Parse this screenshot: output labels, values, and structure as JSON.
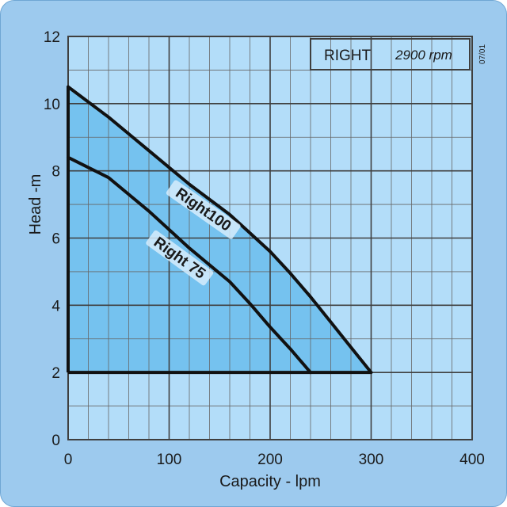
{
  "chart_data": {
    "type": "area",
    "title": "",
    "xlabel": "Capacity - lpm",
    "ylabel": "Head -m",
    "xlim": [
      0,
      400
    ],
    "ylim": [
      0,
      12
    ],
    "x_ticks": [
      0,
      100,
      200,
      300,
      400
    ],
    "y_ticks": [
      0,
      2,
      4,
      6,
      8,
      10,
      12
    ],
    "x_minor_step": 20,
    "y_minor_step": 1,
    "grid": true,
    "legend": {
      "model": "RIGHT",
      "speed": "2900 rpm",
      "placement": "top-right"
    },
    "date_code": "07/01",
    "series": [
      {
        "name": "Right100",
        "x": [
          0,
          20,
          40,
          60,
          80,
          100,
          120,
          140,
          160,
          180,
          200,
          220,
          240,
          260,
          280,
          300
        ],
        "y": [
          10.5,
          10.05,
          9.6,
          9.1,
          8.6,
          8.1,
          7.6,
          7.15,
          6.7,
          6.15,
          5.6,
          4.95,
          4.25,
          3.5,
          2.75,
          2.0
        ]
      },
      {
        "name": "Right 75",
        "x": [
          0,
          20,
          40,
          60,
          80,
          100,
          120,
          140,
          160,
          180,
          200,
          220,
          240
        ],
        "y": [
          8.4,
          8.1,
          7.8,
          7.3,
          6.8,
          6.25,
          5.7,
          5.2,
          4.7,
          4.05,
          3.35,
          2.7,
          2.0
        ]
      }
    ],
    "fill_baseline": 2,
    "colors": {
      "background": "#9dcaee",
      "plot": "#b3ddf9",
      "fill": "#75c2ef",
      "grid_major": "#3f3f3f",
      "grid_minor": "#666666",
      "curve": "#111111",
      "legend_box": "#ffffff"
    }
  }
}
